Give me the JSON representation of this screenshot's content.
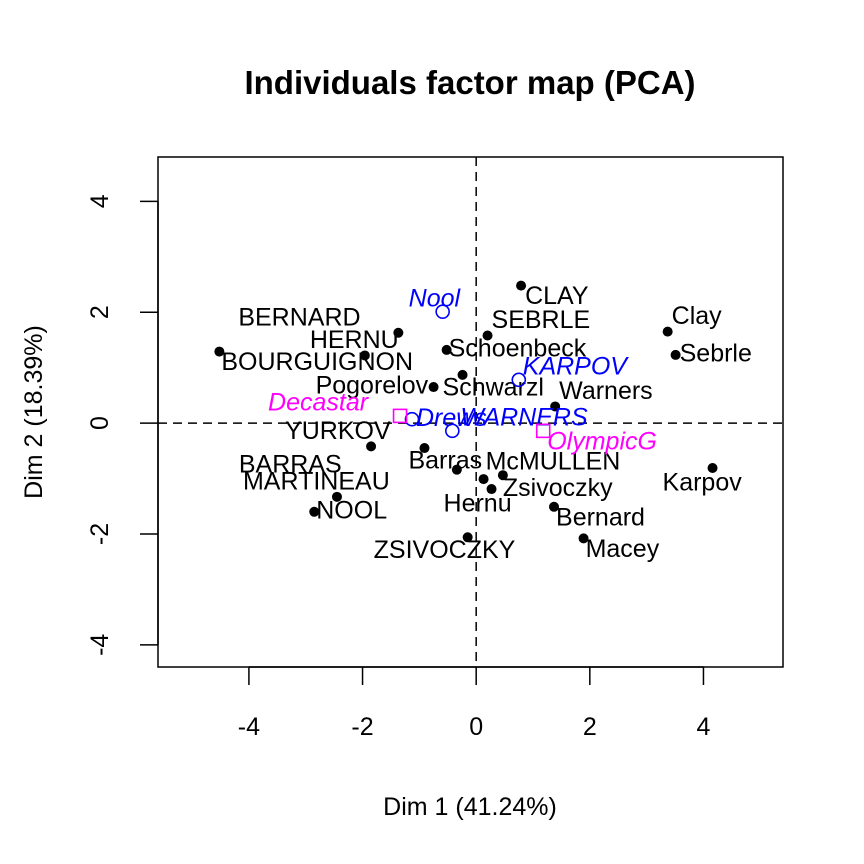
{
  "chart_data": {
    "type": "scatter",
    "title": "Individuals factor map (PCA)",
    "xlabel": "Dim 1 (41.24%)",
    "ylabel": "Dim 2 (18.39%)",
    "xlim": [
      -5.6,
      5.4
    ],
    "ylim": [
      -4.4,
      4.8
    ],
    "xticks": [
      -4,
      -2,
      0,
      2,
      4
    ],
    "yticks": [
      -4,
      -2,
      0,
      2,
      4
    ],
    "grid": false,
    "reference_lines": {
      "x": 0,
      "y": 0
    },
    "colors": {
      "individual": "#000000",
      "supplementary": "#0000ff",
      "category": "#ff00ff"
    },
    "series": [
      {
        "kind": "individual",
        "points": [
          {
            "label": "CLAY",
            "x": 0.79,
            "y": 2.48,
            "dx": 4,
            "dy": 12
          },
          {
            "label": "SEBRLE",
            "x": 0.2,
            "y": 1.58,
            "dx": 4,
            "dy": -14
          },
          {
            "label": "BERNARD",
            "x": -1.37,
            "y": 1.63,
            "dx": -160,
            "dy": -14
          },
          {
            "label": "HERNU",
            "x": -1.96,
            "y": 1.22,
            "dx": -55,
            "dy": -14
          },
          {
            "label": "BOURGUIGNON",
            "x": -4.52,
            "y": 1.29,
            "dx": 2,
            "dy": 12
          },
          {
            "label": "Schoenbeck",
            "x": -0.52,
            "y": 1.32,
            "dx": 2,
            "dy": 0
          },
          {
            "label": "Pogorelov",
            "x": -0.75,
            "y": 0.65,
            "dx": -118,
            "dy": 0
          },
          {
            "label": "Schwarzl",
            "x": -0.24,
            "y": 0.87,
            "dx": -20,
            "dy": 14
          },
          {
            "label": "Clay",
            "x": 3.37,
            "y": 1.65,
            "dx": 4,
            "dy": -14
          },
          {
            "label": "Sebrle",
            "x": 3.51,
            "y": 1.23,
            "dx": 4,
            "dy": 0
          },
          {
            "label": "Warners",
            "x": 1.39,
            "y": 0.3,
            "dx": 4,
            "dy": -14
          },
          {
            "label": "YURKOV",
            "x": -1.85,
            "y": -0.42,
            "dx": -86,
            "dy": -14
          },
          {
            "label": "Barras",
            "x": -0.91,
            "y": -0.45,
            "dx": -16,
            "dy": 14
          },
          {
            "label": "BARRAS",
            "x": -0.34,
            "y": -0.84,
            "dx": -218,
            "dy": -4
          },
          {
            "label": "McMULLEN",
            "x": 0.13,
            "y": -1.01,
            "dx": 2,
            "dy": -16
          },
          {
            "label": "Zsivoczky",
            "x": 0.47,
            "y": -0.94,
            "dx": 0,
            "dy": 14
          },
          {
            "label": "MARTINEAU",
            "x": -2.45,
            "y": -1.33,
            "dx": -94,
            "dy": -14
          },
          {
            "label": "Hernu",
            "x": 0.27,
            "y": -1.19,
            "dx": -48,
            "dy": 16
          },
          {
            "label": "Karpov",
            "x": 4.16,
            "y": -0.81,
            "dx": -50,
            "dy": 16
          },
          {
            "label": "Bernard",
            "x": 1.37,
            "y": -1.51,
            "dx": 2,
            "dy": 12
          },
          {
            "label": "NOOL",
            "x": -2.85,
            "y": -1.6,
            "dx": 2,
            "dy": 0
          },
          {
            "label": "ZSIVOCZKY",
            "x": -0.15,
            "y": -2.06,
            "dx": -94,
            "dy": 14
          },
          {
            "label": "Macey",
            "x": 1.89,
            "y": -2.08,
            "dx": 2,
            "dy": 12
          }
        ]
      },
      {
        "kind": "supplementary",
        "points": [
          {
            "label": "Nool",
            "x": -0.59,
            "y": 2.01,
            "dx": -34,
            "dy": -12
          },
          {
            "label": "KARPOV",
            "x": 0.75,
            "y": 0.78,
            "dx": 4,
            "dy": -12
          },
          {
            "label": "Drews",
            "x": -1.13,
            "y": 0.07,
            "dx": 4,
            "dy": 0
          },
          {
            "label": "WARNERS",
            "x": -0.42,
            "y": -0.14,
            "dx": 8,
            "dy": -12
          }
        ]
      },
      {
        "kind": "category",
        "points": [
          {
            "label": "Decastar",
            "x": -1.34,
            "y": 0.13,
            "dx": -132,
            "dy": -12
          },
          {
            "label": "OlympicG",
            "x": 1.18,
            "y": -0.14,
            "dx": 4,
            "dy": 12
          }
        ]
      }
    ]
  }
}
